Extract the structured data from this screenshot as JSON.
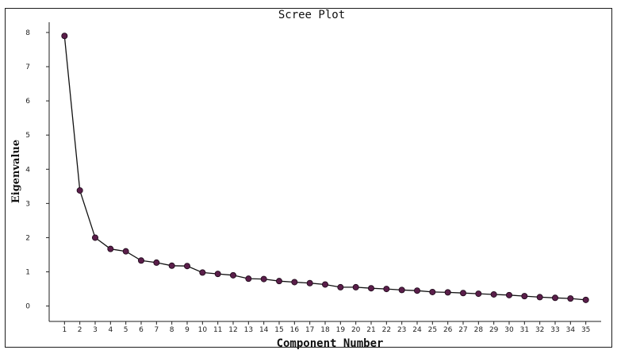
{
  "chart_data": {
    "type": "line",
    "title": "Scree Plot",
    "xlabel": "Component Number",
    "ylabel": "Eigenvalue",
    "x": [
      1,
      2,
      3,
      4,
      5,
      6,
      7,
      8,
      9,
      10,
      11,
      12,
      13,
      14,
      15,
      16,
      17,
      18,
      19,
      20,
      21,
      22,
      23,
      24,
      25,
      26,
      27,
      28,
      29,
      30,
      31,
      32,
      33,
      34,
      35
    ],
    "xticks": [
      "1",
      "2",
      "3",
      "4",
      "5",
      "6",
      "7",
      "8",
      "9",
      "10",
      "11",
      "12",
      "13",
      "14",
      "15",
      "16",
      "17",
      "18",
      "19",
      "20",
      "21",
      "22",
      "23",
      "24",
      "25",
      "26",
      "27",
      "28",
      "29",
      "30",
      "31",
      "32",
      "33",
      "34",
      "35"
    ],
    "values": [
      7.9,
      3.38,
      2.0,
      1.67,
      1.6,
      1.33,
      1.27,
      1.18,
      1.17,
      0.98,
      0.94,
      0.9,
      0.8,
      0.79,
      0.73,
      0.7,
      0.67,
      0.63,
      0.55,
      0.55,
      0.52,
      0.5,
      0.47,
      0.45,
      0.41,
      0.4,
      0.38,
      0.36,
      0.34,
      0.32,
      0.29,
      0.26,
      0.24,
      0.22,
      0.18
    ],
    "yticks": [
      0,
      1,
      2,
      3,
      4,
      5,
      6,
      7,
      8
    ],
    "ylim": [
      -0.45,
      8.3
    ],
    "xlim": [
      0,
      36
    ],
    "grid": false,
    "line_color": "#111111",
    "marker_color": "#5a1e4a",
    "frame_color": "#1c1c1c"
  }
}
